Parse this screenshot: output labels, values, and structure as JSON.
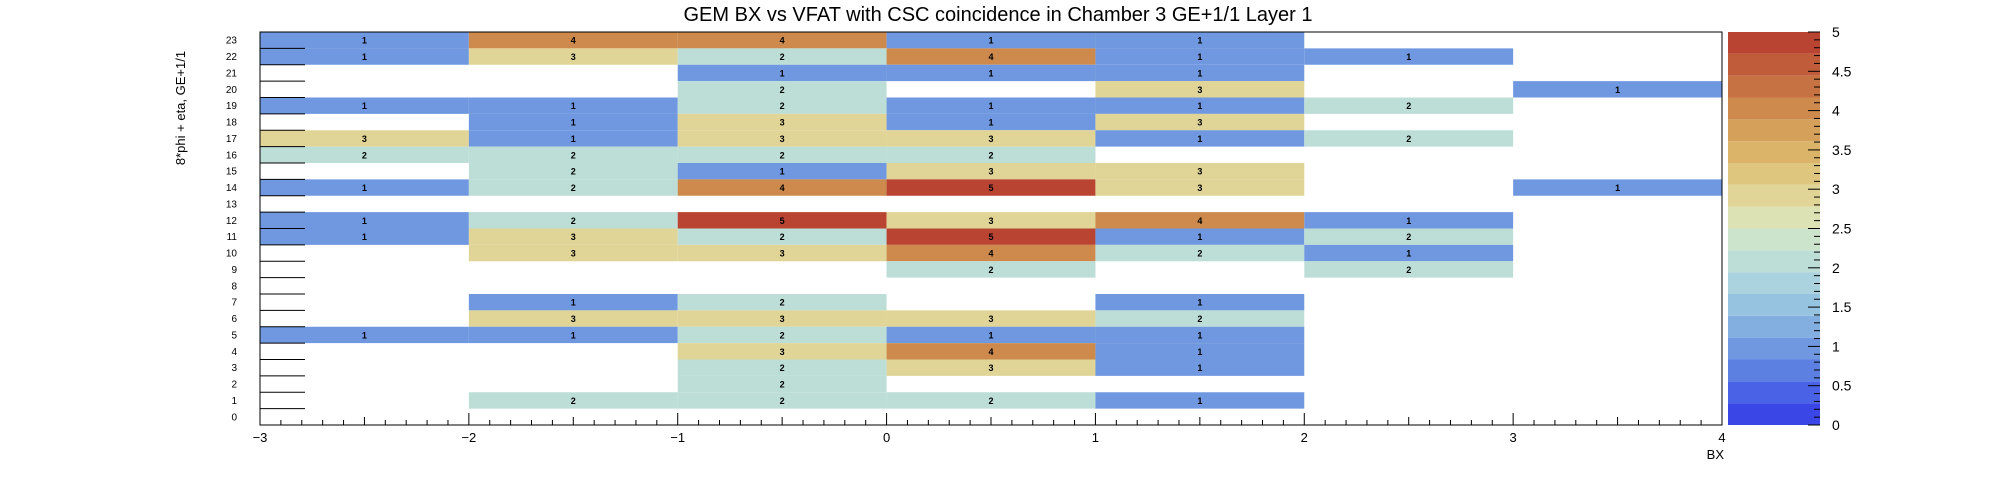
{
  "chart_data": {
    "type": "heatmap",
    "title": "GEM BX vs VFAT with CSC coincidence in Chamber 3 GE+1/1 Layer 1",
    "xlabel": "BX",
    "ylabel": "8*phi + eta, GE+1/1",
    "xlim": [
      -3,
      4
    ],
    "ylim": [
      0,
      24
    ],
    "x_ticks": [
      -3,
      -2,
      -1,
      0,
      1,
      2,
      3,
      4
    ],
    "x_tick_labels": [
      "−3",
      "−2",
      "−1",
      "0",
      "1",
      "2",
      "3",
      "4"
    ],
    "y_ticks": [
      0,
      1,
      2,
      3,
      4,
      5,
      6,
      7,
      8,
      9,
      10,
      11,
      12,
      13,
      14,
      15,
      16,
      17,
      18,
      19,
      20,
      21,
      22,
      23
    ],
    "zlim": [
      0,
      5
    ],
    "z_ticks": [
      0,
      0.5,
      1,
      1.5,
      2,
      2.5,
      3,
      3.5,
      4,
      4.5,
      5
    ],
    "z_tick_labels": [
      "0",
      "0.5",
      "1",
      "1.5",
      "2",
      "2.5",
      "3",
      "3.5",
      "4",
      "4.5",
      "5"
    ],
    "grid": false,
    "palette": [
      "#3a46e6",
      "#4a63e6",
      "#5c7fe2",
      "#6f98e0",
      "#82aee0",
      "#96c3e0",
      "#aad3df",
      "#bcded6",
      "#cde4cc",
      "#dde2b4",
      "#e0d596",
      "#dfc67e",
      "#dbb46a",
      "#d4a05a",
      "#cd8a4c",
      "#c67242",
      "#c05c3a",
      "#b94432"
    ],
    "cells": [
      {
        "x": -2.5,
        "y": 23,
        "value": 1
      },
      {
        "x": -1.5,
        "y": 23,
        "value": 4
      },
      {
        "x": -0.5,
        "y": 23,
        "value": 4
      },
      {
        "x": 0.5,
        "y": 23,
        "value": 1
      },
      {
        "x": 1.5,
        "y": 23,
        "value": 1
      },
      {
        "x": -2.5,
        "y": 22,
        "value": 1
      },
      {
        "x": -1.5,
        "y": 22,
        "value": 3
      },
      {
        "x": -0.5,
        "y": 22,
        "value": 2
      },
      {
        "x": 0.5,
        "y": 22,
        "value": 4
      },
      {
        "x": 1.5,
        "y": 22,
        "value": 1
      },
      {
        "x": 2.5,
        "y": 22,
        "value": 1
      },
      {
        "x": -0.5,
        "y": 21,
        "value": 1
      },
      {
        "x": 0.5,
        "y": 21,
        "value": 1
      },
      {
        "x": 1.5,
        "y": 21,
        "value": 1
      },
      {
        "x": -0.5,
        "y": 20,
        "value": 2
      },
      {
        "x": 1.5,
        "y": 20,
        "value": 3
      },
      {
        "x": 3.5,
        "y": 20,
        "value": 1
      },
      {
        "x": -2.5,
        "y": 19,
        "value": 1
      },
      {
        "x": -1.5,
        "y": 19,
        "value": 1
      },
      {
        "x": -0.5,
        "y": 19,
        "value": 2
      },
      {
        "x": 0.5,
        "y": 19,
        "value": 1
      },
      {
        "x": 1.5,
        "y": 19,
        "value": 1
      },
      {
        "x": 2.5,
        "y": 19,
        "value": 2
      },
      {
        "x": -1.5,
        "y": 18,
        "value": 1
      },
      {
        "x": -0.5,
        "y": 18,
        "value": 3
      },
      {
        "x": 0.5,
        "y": 18,
        "value": 1
      },
      {
        "x": 1.5,
        "y": 18,
        "value": 3
      },
      {
        "x": -2.5,
        "y": 17,
        "value": 3
      },
      {
        "x": -1.5,
        "y": 17,
        "value": 1
      },
      {
        "x": -0.5,
        "y": 17,
        "value": 3
      },
      {
        "x": 0.5,
        "y": 17,
        "value": 3
      },
      {
        "x": 1.5,
        "y": 17,
        "value": 1
      },
      {
        "x": 2.5,
        "y": 17,
        "value": 2
      },
      {
        "x": -2.5,
        "y": 16,
        "value": 2
      },
      {
        "x": -1.5,
        "y": 16,
        "value": 2
      },
      {
        "x": -0.5,
        "y": 16,
        "value": 2
      },
      {
        "x": 0.5,
        "y": 16,
        "value": 2
      },
      {
        "x": -1.5,
        "y": 15,
        "value": 2
      },
      {
        "x": -0.5,
        "y": 15,
        "value": 1
      },
      {
        "x": 0.5,
        "y": 15,
        "value": 3
      },
      {
        "x": 1.5,
        "y": 15,
        "value": 3
      },
      {
        "x": -2.5,
        "y": 14,
        "value": 1
      },
      {
        "x": -1.5,
        "y": 14,
        "value": 2
      },
      {
        "x": -0.5,
        "y": 14,
        "value": 4
      },
      {
        "x": 0.5,
        "y": 14,
        "value": 5
      },
      {
        "x": 1.5,
        "y": 14,
        "value": 3
      },
      {
        "x": 3.5,
        "y": 14,
        "value": 1
      },
      {
        "x": -2.5,
        "y": 12,
        "value": 1
      },
      {
        "x": -1.5,
        "y": 12,
        "value": 2
      },
      {
        "x": -0.5,
        "y": 12,
        "value": 5
      },
      {
        "x": 0.5,
        "y": 12,
        "value": 3
      },
      {
        "x": 1.5,
        "y": 12,
        "value": 4
      },
      {
        "x": 2.5,
        "y": 12,
        "value": 1
      },
      {
        "x": -2.5,
        "y": 11,
        "value": 1
      },
      {
        "x": -1.5,
        "y": 11,
        "value": 3
      },
      {
        "x": -0.5,
        "y": 11,
        "value": 2
      },
      {
        "x": 0.5,
        "y": 11,
        "value": 5
      },
      {
        "x": 1.5,
        "y": 11,
        "value": 1
      },
      {
        "x": 2.5,
        "y": 11,
        "value": 2
      },
      {
        "x": -1.5,
        "y": 10,
        "value": 3
      },
      {
        "x": -0.5,
        "y": 10,
        "value": 3
      },
      {
        "x": 0.5,
        "y": 10,
        "value": 4
      },
      {
        "x": 1.5,
        "y": 10,
        "value": 2
      },
      {
        "x": 2.5,
        "y": 10,
        "value": 1
      },
      {
        "x": 0.5,
        "y": 9,
        "value": 2
      },
      {
        "x": 2.5,
        "y": 9,
        "value": 2
      },
      {
        "x": -1.5,
        "y": 7,
        "value": 1
      },
      {
        "x": -0.5,
        "y": 7,
        "value": 2
      },
      {
        "x": 1.5,
        "y": 7,
        "value": 1
      },
      {
        "x": -1.5,
        "y": 6,
        "value": 3
      },
      {
        "x": -0.5,
        "y": 6,
        "value": 3
      },
      {
        "x": 0.5,
        "y": 6,
        "value": 3
      },
      {
        "x": 1.5,
        "y": 6,
        "value": 2
      },
      {
        "x": -2.5,
        "y": 5,
        "value": 1
      },
      {
        "x": -1.5,
        "y": 5,
        "value": 1
      },
      {
        "x": -0.5,
        "y": 5,
        "value": 2
      },
      {
        "x": 0.5,
        "y": 5,
        "value": 1
      },
      {
        "x": 1.5,
        "y": 5,
        "value": 1
      },
      {
        "x": -0.5,
        "y": 4,
        "value": 3
      },
      {
        "x": 0.5,
        "y": 4,
        "value": 4
      },
      {
        "x": 1.5,
        "y": 4,
        "value": 1
      },
      {
        "x": -0.5,
        "y": 3,
        "value": 2
      },
      {
        "x": 0.5,
        "y": 3,
        "value": 3
      },
      {
        "x": 1.5,
        "y": 3,
        "value": 1
      },
      {
        "x": -0.5,
        "y": 2,
        "value": 2
      },
      {
        "x": -1.5,
        "y": 1,
        "value": 2
      },
      {
        "x": -0.5,
        "y": 1,
        "value": 2
      },
      {
        "x": 0.5,
        "y": 1,
        "value": 2
      },
      {
        "x": 1.5,
        "y": 1,
        "value": 1
      }
    ]
  }
}
